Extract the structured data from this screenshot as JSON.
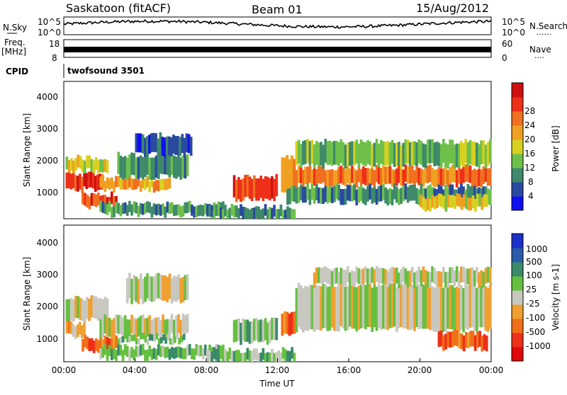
{
  "header": {
    "station": "Saskatoon (fitACF)",
    "beam": "Beam 01",
    "date": "15/Aug/2012"
  },
  "side_labels": {
    "nsky": "N.Sky",
    "freq": "Freq.",
    "mhz": "[MHz]",
    "cpid": "CPID",
    "nsearch": "N.Search",
    "nave": "Nave",
    "dots6": "......",
    "dots4": "...."
  },
  "strips": {
    "noise_ticks_left": [
      "10^5",
      "10^0"
    ],
    "noise_ticks_right": [
      "10^5",
      "10^0"
    ],
    "freq_ticks_left": [
      "18",
      "8"
    ],
    "freq_ticks_right": [
      "60",
      "0"
    ],
    "cpid_text": "twofsound 3501"
  },
  "chart_data": [
    {
      "type": "heatmap",
      "name": "power",
      "ylabel": "Slant Range [km]",
      "yticks": [
        "1000",
        "2000",
        "3000",
        "4000"
      ],
      "ylim": [
        180,
        4500
      ],
      "xlim": [
        0,
        24
      ],
      "colorbar": {
        "label": "Power [dB]",
        "ticks": [
          "4",
          "8",
          "12",
          "16",
          "20",
          "24",
          "28"
        ],
        "colors": [
          "#1010ee",
          "#2a4aa0",
          "#3f8a6a",
          "#6ec04a",
          "#d8d020",
          "#f0a020",
          "#f07020",
          "#ee3018",
          "#d01010"
        ]
      },
      "regions": [
        {
          "t0": 0.1,
          "t1": 2.2,
          "r0": 1100,
          "r1": 1600,
          "level": 7
        },
        {
          "t0": 0.1,
          "t1": 2.5,
          "r0": 1700,
          "r1": 2100,
          "level": 4
        },
        {
          "t0": 1.0,
          "t1": 3.0,
          "r0": 550,
          "r1": 950,
          "level": 7
        },
        {
          "t0": 2.0,
          "t1": 6.0,
          "r0": 1100,
          "r1": 1450,
          "level": 5
        },
        {
          "t0": 3.0,
          "t1": 7.0,
          "r0": 1500,
          "r1": 2200,
          "level": 2
        },
        {
          "t0": 4.0,
          "t1": 7.2,
          "r0": 2200,
          "r1": 2800,
          "level": 1
        },
        {
          "t0": 2.0,
          "t1": 9.0,
          "r0": 300,
          "r1": 650,
          "level": 2
        },
        {
          "t0": 9.5,
          "t1": 12.0,
          "r0": 800,
          "r1": 1500,
          "level": 7
        },
        {
          "t0": 12.2,
          "t1": 13.0,
          "r0": 1000,
          "r1": 2100,
          "level": 6
        },
        {
          "t0": 13.0,
          "t1": 24.0,
          "r0": 1250,
          "r1": 1800,
          "level": 6
        },
        {
          "t0": 13.0,
          "t1": 24.0,
          "r0": 1850,
          "r1": 2600,
          "level": 3
        },
        {
          "t0": 12.5,
          "t1": 24.0,
          "r0": 700,
          "r1": 1200,
          "level": 2
        },
        {
          "t0": 8.0,
          "t1": 13.0,
          "r0": 180,
          "r1": 550,
          "level": 2
        },
        {
          "t0": 20.0,
          "t1": 23.8,
          "r0": 500,
          "r1": 900,
          "level": 4
        }
      ]
    },
    {
      "type": "heatmap",
      "name": "velocity",
      "ylabel": "Slant Range [km]",
      "yticks": [
        "1000",
        "2000",
        "3000",
        "4000"
      ],
      "ylim": [
        180,
        4500
      ],
      "xlim": [
        0,
        24
      ],
      "xticks": [
        "00:00",
        "04:00",
        "08:00",
        "12:00",
        "16:00",
        "20:00",
        "00:00"
      ],
      "xlabel": "Time UT",
      "colorbar": {
        "label": "Velocity [m s-1]",
        "ticks": [
          "1000",
          "500",
          "100",
          "25",
          "-25",
          "-100",
          "-500",
          "-1000"
        ],
        "colors": [
          "#1a30c8",
          "#2a5aa8",
          "#3a8a6a",
          "#66c040",
          "#c8c8c0",
          "#f0a030",
          "#f07018",
          "#ee3018",
          "#e00808"
        ]
      },
      "regions": [
        {
          "t0": 0.1,
          "t1": 2.5,
          "r0": 1500,
          "r1": 2200,
          "level": 4
        },
        {
          "t0": 0.1,
          "t1": 1.2,
          "r0": 1000,
          "r1": 1400,
          "level": 5
        },
        {
          "t0": 1.0,
          "t1": 3.0,
          "r0": 550,
          "r1": 950,
          "level": 6
        },
        {
          "t0": 2.0,
          "t1": 7.0,
          "r0": 1000,
          "r1": 1600,
          "level": 4
        },
        {
          "t0": 3.0,
          "t1": 6.8,
          "r0": 800,
          "r1": 1000,
          "level": 3
        },
        {
          "t0": 3.5,
          "t1": 7.0,
          "r0": 2100,
          "r1": 2900,
          "level": 4
        },
        {
          "t0": 2.0,
          "t1": 9.0,
          "r0": 300,
          "r1": 650,
          "level": 3
        },
        {
          "t0": 9.5,
          "t1": 12.0,
          "r0": 800,
          "r1": 1500,
          "level": 3
        },
        {
          "t0": 12.2,
          "t1": 13.0,
          "r0": 1000,
          "r1": 1700,
          "level": 6
        },
        {
          "t0": 13.0,
          "t1": 24.0,
          "r0": 1200,
          "r1": 2600,
          "level": 4
        },
        {
          "t0": 14.0,
          "t1": 24.0,
          "r0": 2600,
          "r1": 3100,
          "level": 4
        },
        {
          "t0": 8.0,
          "t1": 13.0,
          "r0": 180,
          "r1": 550,
          "level": 3
        },
        {
          "t0": 21.0,
          "t1": 23.8,
          "r0": 600,
          "r1": 1100,
          "level": 6
        }
      ]
    }
  ]
}
